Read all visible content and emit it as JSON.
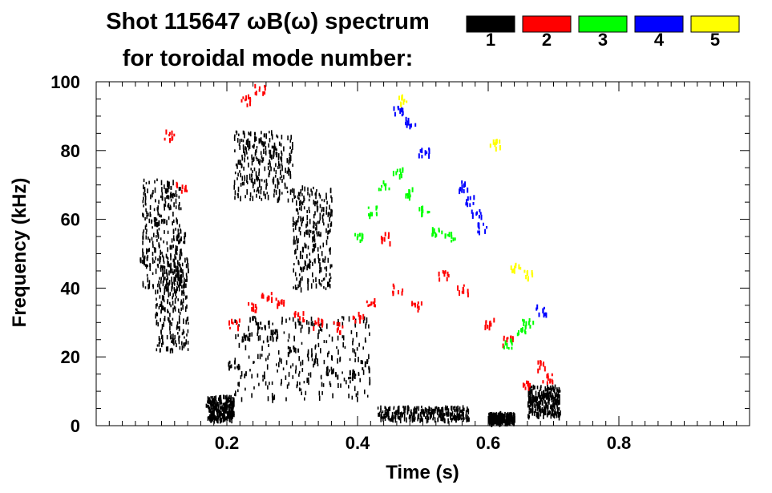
{
  "chart_data": {
    "type": "scatter",
    "title_line1": "Shot 115647 ωB(ω) spectrum",
    "title_line2": "for toroidal mode number:",
    "xlabel": "Time (s)",
    "ylabel": "Frequency (kHz)",
    "xlim": [
      0.0,
      1.0
    ],
    "ylim": [
      0,
      100
    ],
    "x_ticks": [
      0.2,
      0.4,
      0.6,
      0.8
    ],
    "x_tick_labels": [
      "0.2",
      "0.4",
      "0.6",
      "0.8"
    ],
    "y_ticks": [
      0,
      20,
      40,
      60,
      80,
      100
    ],
    "y_tick_labels": [
      "0",
      "20",
      "40",
      "60",
      "80",
      "100"
    ],
    "legend_position": "top-right",
    "legend": [
      {
        "label": "1",
        "color": "#000000"
      },
      {
        "label": "2",
        "color": "#ff0000"
      },
      {
        "label": "3",
        "color": "#00ff00"
      },
      {
        "label": "4",
        "color": "#0000ff"
      },
      {
        "label": "5",
        "color": "#ffff00"
      }
    ],
    "series": [
      {
        "name": "n=1",
        "color": "#000000",
        "regions": [
          {
            "t": [
              0.07,
              0.13
            ],
            "f": [
              40,
              72
            ]
          },
          {
            "t": [
              0.09,
              0.14
            ],
            "f": [
              22,
              50
            ]
          },
          {
            "t": [
              0.17,
              0.21
            ],
            "f": [
              2,
              9
            ]
          },
          {
            "t": [
              0.21,
              0.42
            ],
            "f": [
              8,
              32
            ]
          },
          {
            "t": [
              0.21,
              0.3
            ],
            "f": [
              66,
              86
            ]
          },
          {
            "t": [
              0.3,
              0.36
            ],
            "f": [
              40,
              70
            ]
          },
          {
            "t": [
              0.43,
              0.57
            ],
            "f": [
              2,
              6
            ]
          },
          {
            "t": [
              0.6,
              0.64
            ],
            "f": [
              1,
              4
            ]
          },
          {
            "t": [
              0.66,
              0.71
            ],
            "f": [
              3,
              12
            ]
          }
        ],
        "x": [
          0.075,
          0.09,
          0.105,
          0.115,
          0.13,
          0.175,
          0.19,
          0.21,
          0.23,
          0.25,
          0.27,
          0.3,
          0.33,
          0.36,
          0.39,
          0.41,
          0.23,
          0.25,
          0.27,
          0.45,
          0.5,
          0.55,
          0.62,
          0.67,
          0.69,
          0.7
        ],
        "y": [
          48,
          60,
          70,
          68,
          55,
          7,
          5,
          18,
          26,
          30,
          27,
          22,
          20,
          16,
          15,
          18,
          82,
          84,
          80,
          4,
          4,
          3,
          3,
          8,
          10,
          5
        ]
      },
      {
        "name": "n=2",
        "color": "#ff0000",
        "x": [
          0.11,
          0.13,
          0.21,
          0.24,
          0.26,
          0.28,
          0.31,
          0.34,
          0.37,
          0.4,
          0.42,
          0.44,
          0.23,
          0.25,
          0.46,
          0.49,
          0.53,
          0.56,
          0.6,
          0.63,
          0.66,
          0.68,
          0.69
        ],
        "y": [
          85,
          70,
          30,
          35,
          38,
          36,
          32,
          30,
          29,
          32,
          36,
          55,
          95,
          98,
          40,
          35,
          44,
          40,
          30,
          25,
          12,
          18,
          14
        ]
      },
      {
        "name": "n=3",
        "color": "#00ff00",
        "x": [
          0.4,
          0.42,
          0.44,
          0.46,
          0.48,
          0.5,
          0.52,
          0.54,
          0.63,
          0.65,
          0.66
        ],
        "y": [
          55,
          63,
          70,
          74,
          68,
          63,
          57,
          55,
          24,
          28,
          30
        ]
      },
      {
        "name": "n=4",
        "color": "#0000ff",
        "x": [
          0.46,
          0.48,
          0.5,
          0.56,
          0.57,
          0.58,
          0.59,
          0.68
        ],
        "y": [
          92,
          89,
          80,
          70,
          66,
          62,
          58,
          34
        ]
      },
      {
        "name": "n=5",
        "color": "#ffff00",
        "x": [
          0.47,
          0.61,
          0.64,
          0.66
        ],
        "y": [
          95,
          82,
          46,
          44
        ]
      }
    ]
  }
}
